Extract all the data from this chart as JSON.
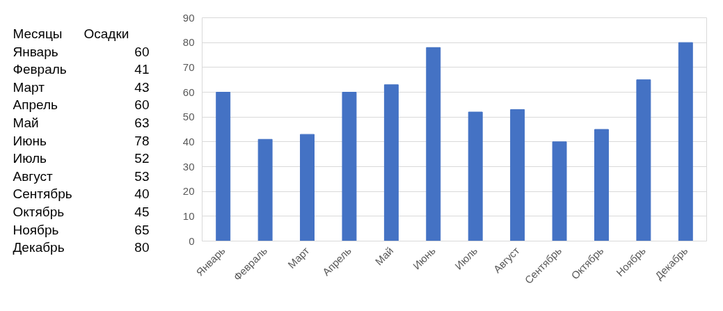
{
  "chart_data": [
    {
      "type": "other",
      "annotations": [
        "Месяцы",
        "Осадки",
        "Январь",
        "60",
        "Февраль",
        "41",
        "Март",
        "43",
        "Апрель",
        "60",
        "Май",
        "63",
        "Июнь",
        "78",
        "Июль",
        "52",
        "Август",
        "53",
        "Сентябрь",
        "40",
        "Октябрь",
        "45",
        "Ноябрь",
        "65",
        "Декабрь",
        "80"
      ]
    },
    {
      "type": "bar",
      "categories": [
        "Январь",
        "Февраль",
        "Март",
        "Апрель",
        "Май",
        "Июнь",
        "Июль",
        "Август",
        "Сентябрь",
        "Октябрь",
        "Ноябрь",
        "Декабрь"
      ],
      "values": [
        60,
        41,
        43,
        60,
        63,
        78,
        52,
        53,
        40,
        45,
        65,
        80
      ],
      "color": "#4472c4",
      "ylim": [
        0,
        90
      ],
      "yticks": [
        0,
        10,
        20,
        30,
        40,
        50,
        60,
        70,
        80,
        90
      ],
      "grid": "y"
    }
  ]
}
